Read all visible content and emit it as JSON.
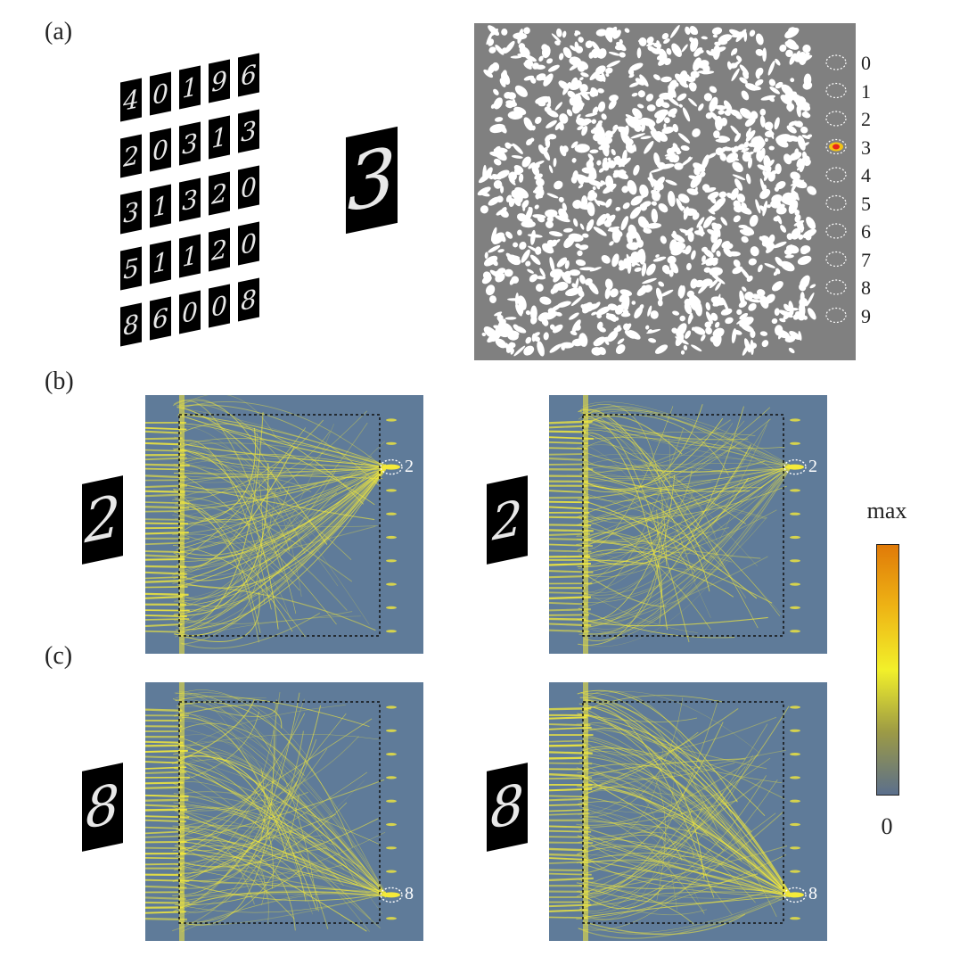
{
  "panels": {
    "a_label": "(a)",
    "b_label": "(b)",
    "c_label": "(c)"
  },
  "digit_grid": [
    [
      "4",
      "0",
      "1",
      "9",
      "6"
    ],
    [
      "2",
      "0",
      "3",
      "1",
      "3"
    ],
    [
      "3",
      "1",
      "3",
      "2",
      "0"
    ],
    [
      "5",
      "1",
      "1",
      "2",
      "0"
    ],
    [
      "8",
      "6",
      "0",
      "0",
      "8"
    ]
  ],
  "input_digit_a": "3",
  "output_classes": [
    "0",
    "1",
    "2",
    "3",
    "4",
    "5",
    "6",
    "7",
    "8",
    "9"
  ],
  "active_class_a": "3",
  "panel_b": {
    "input_digits": [
      "2",
      "2"
    ],
    "detected_labels": [
      "2",
      "2"
    ]
  },
  "panel_c": {
    "input_digits": [
      "8",
      "8"
    ],
    "detected_labels": [
      "8",
      "8"
    ]
  },
  "colorbar": {
    "max_label": "max",
    "min_label": "0",
    "colors": [
      "#5b6f8c",
      "#9c9a45",
      "#f2f02a",
      "#eeb415",
      "#e07a08"
    ]
  },
  "colors": {
    "heatmap_bg": "#5f7b99",
    "ray": "#f4ea3a",
    "mask_gray": "#808080",
    "focus_red": "#e8261a"
  }
}
